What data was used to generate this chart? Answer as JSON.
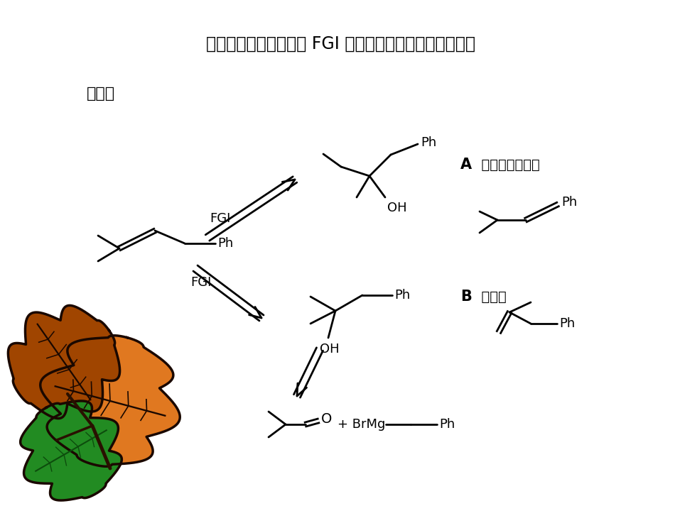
{
  "bg_color": "#ffffff",
  "title_text": "上面的反应还可以通过 FGI 变成醇，再由醇脱水而制得。",
  "subtitle_text": "分析：",
  "label_A_bold": "A",
  "label_A_text": "  脂水得共轭烯烃",
  "label_B_bold": "B",
  "label_B_text": "  得不到",
  "label_FGI1": "FGI",
  "label_FGI2": "FGI",
  "label_OH1": "OH",
  "label_OH2": "OH",
  "label_Ph": "Ph",
  "label_BrMg": "+ BrMg",
  "label_O": "O",
  "line_color": "#000000",
  "text_color": "#000000",
  "leaf_brown1": "#CC6600",
  "leaf_brown2": "#A04500",
  "leaf_orange": "#E07820",
  "leaf_green": "#228B22",
  "leaf_dark": "#2a1000"
}
